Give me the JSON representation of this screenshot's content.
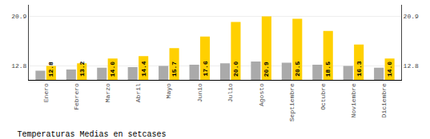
{
  "chart_data": {
    "type": "bar",
    "title": "Temperaturas Medias en setcases",
    "categories": [
      "Enero",
      "Febrero",
      "Marzo",
      "Abril",
      "Mayo",
      "Junio",
      "Julio",
      "Agosto",
      "Septiembre",
      "Octubre",
      "Noviembre",
      "Diciembre"
    ],
    "series": [
      {
        "color": "#AAAAAA",
        "values": [
          12.0,
          12.2,
          12.5,
          12.6,
          12.8,
          13.0,
          13.2,
          13.5,
          13.3,
          13.0,
          12.8,
          12.5
        ]
      },
      {
        "color": "#FFD000",
        "values": [
          12.8,
          13.2,
          14.0,
          14.4,
          15.7,
          17.6,
          20.0,
          20.9,
          20.5,
          18.5,
          16.3,
          14.0
        ],
        "data_labels": true,
        "value_labels": [
          "12.8",
          "13.2",
          "14.0",
          "14.4",
          "15.7",
          "17.6",
          "20.0",
          "20.9",
          "20.5",
          "18.5",
          "16.3",
          "14.0"
        ]
      }
    ],
    "ylim": [
      10.5,
      22.8
    ],
    "yticks": [
      12.8,
      20.9
    ],
    "y2lim": [
      10.5,
      22.8
    ],
    "y2ticks": [
      12.8,
      20.9
    ],
    "grid": true
  }
}
